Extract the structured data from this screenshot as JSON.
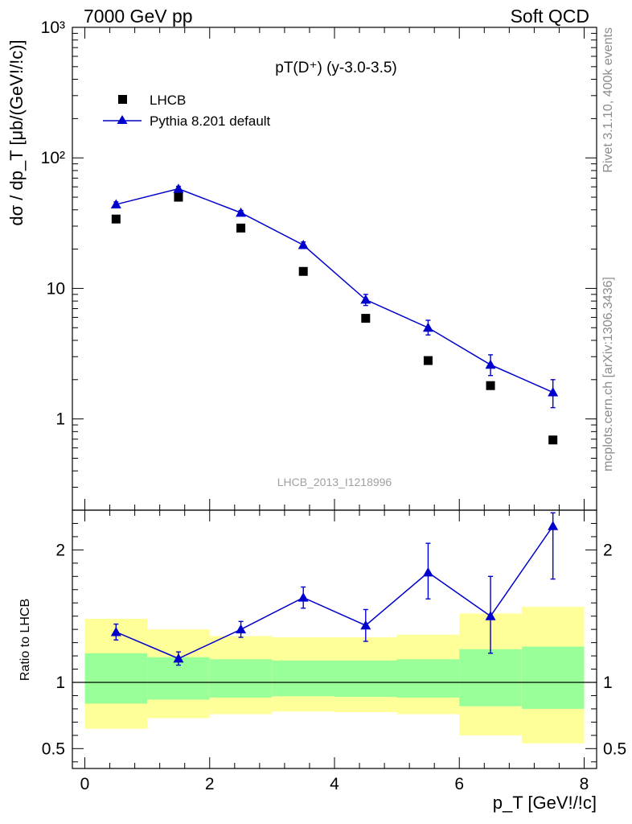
{
  "header": {
    "energy_label": "7000 GeV pp",
    "process_label": "Soft QCD"
  },
  "side_labels": {
    "rivet": "Rivet 3.1.10,  400k events",
    "source": "mcplots.cern.ch [arXiv:1306.3436]"
  },
  "watermark": "LHCB_2013_I1218996",
  "chart_data": [
    {
      "type": "scatter",
      "panel": "main",
      "title": "pT(D⁺) (y-3.0-3.5)",
      "ylabel": "dσ / dp_T [μb/(GeV!/!c)]",
      "xlabel": "",
      "y_scale": "log",
      "xlim": [
        -0.2,
        8.2
      ],
      "ylim": [
        0.2,
        1000
      ],
      "y_ticks": [
        1,
        10,
        100,
        1000
      ],
      "y_tick_labels": [
        "1",
        "10",
        "10²",
        "10³"
      ],
      "legend_position": "top-left",
      "legend": [
        "LHCB",
        "Pythia 8.201 default"
      ],
      "x": [
        0.5,
        1.5,
        2.5,
        3.5,
        4.5,
        5.5,
        6.5,
        7.5
      ],
      "series": [
        {
          "name": "LHCB",
          "marker": "square",
          "color": "#000000",
          "values": [
            34,
            50,
            29,
            13.5,
            5.9,
            2.8,
            1.8,
            0.69
          ]
        },
        {
          "name": "Pythia 8.201 default",
          "marker": "triangle",
          "line": true,
          "color": "#0000cc",
          "values": [
            44,
            58,
            38,
            21.5,
            8.2,
            5.0,
            2.6,
            1.6
          ],
          "err_low": [
            2,
            2.5,
            1.5,
            1.2,
            0.8,
            0.6,
            0.45,
            0.38
          ],
          "err_high": [
            2,
            2.5,
            1.5,
            1.2,
            0.8,
            0.7,
            0.5,
            0.4
          ]
        }
      ]
    },
    {
      "type": "scatter",
      "panel": "ratio",
      "ylabel": "Ratio to LHCB",
      "xlabel": "p_T [GeV!/!c]",
      "xlim": [
        -0.2,
        8.2
      ],
      "ylim": [
        0.35,
        2.3
      ],
      "y_ticks": [
        0.5,
        1,
        2
      ],
      "y_tick_labels": [
        "0.5",
        "1",
        "2"
      ],
      "x_ticks": [
        0,
        2,
        4,
        6,
        8
      ],
      "x_tick_labels": [
        "0",
        "2",
        "4",
        "6",
        "8"
      ],
      "reference_line": 1,
      "bands": {
        "bin_edges": [
          0,
          1,
          2,
          3,
          4,
          5,
          6,
          7,
          8
        ],
        "outer_color": "#ffff99",
        "inner_color": "#99ff99",
        "outer_low": [
          0.65,
          0.73,
          0.76,
          0.78,
          0.775,
          0.76,
          0.6,
          0.54
        ],
        "outer_high": [
          1.48,
          1.4,
          1.35,
          1.34,
          1.34,
          1.36,
          1.52,
          1.57
        ],
        "inner_low": [
          0.84,
          0.87,
          0.885,
          0.895,
          0.89,
          0.885,
          0.82,
          0.8
        ],
        "inner_high": [
          1.22,
          1.19,
          1.175,
          1.165,
          1.165,
          1.175,
          1.25,
          1.27
        ]
      },
      "x": [
        0.5,
        1.5,
        2.5,
        3.5,
        4.5,
        5.5,
        6.5,
        7.5
      ],
      "series": [
        {
          "name": "Pythia 8.201 default",
          "marker": "triangle",
          "line": true,
          "color": "#0000cc",
          "values": [
            1.38,
            1.18,
            1.4,
            1.64,
            1.43,
            1.83,
            1.5,
            2.18
          ],
          "err_low": [
            0.06,
            0.05,
            0.06,
            0.08,
            0.12,
            0.2,
            0.28,
            0.4
          ],
          "err_high": [
            0.06,
            0.05,
            0.06,
            0.08,
            0.12,
            0.22,
            0.3,
            0.1
          ]
        }
      ]
    }
  ]
}
